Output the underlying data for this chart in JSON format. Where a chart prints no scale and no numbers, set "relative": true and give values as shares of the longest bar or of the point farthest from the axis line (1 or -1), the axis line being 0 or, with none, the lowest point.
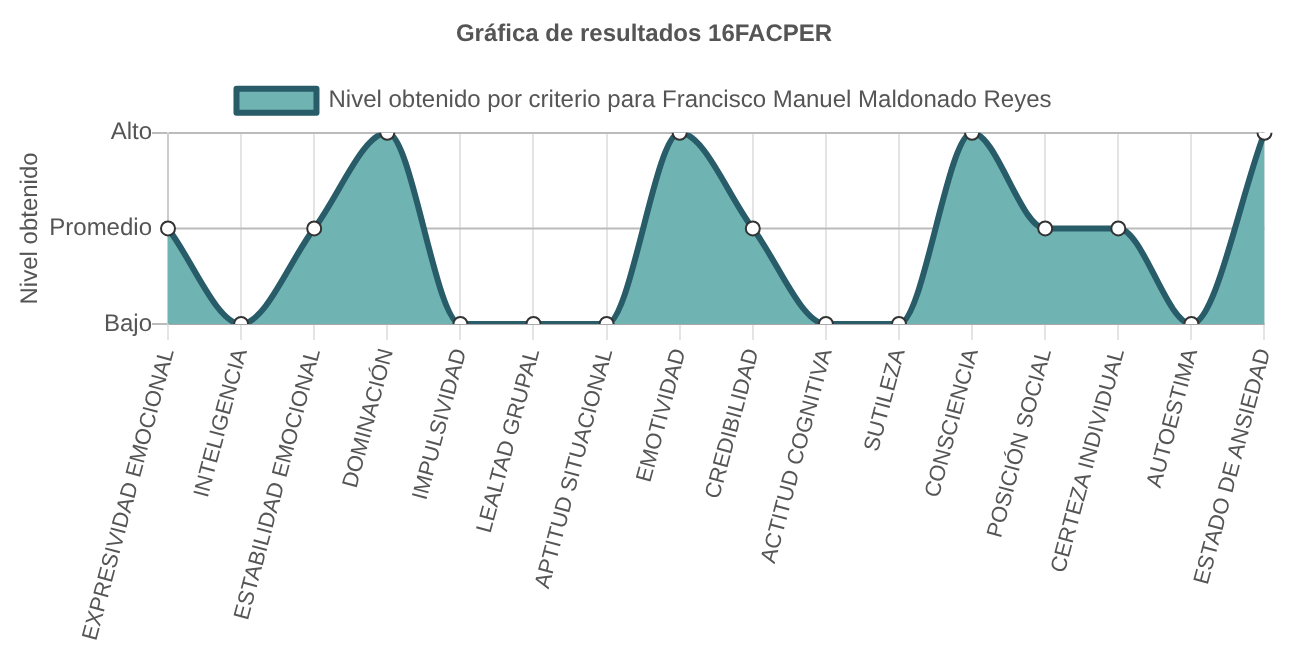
{
  "chart_data": {
    "type": "area",
    "title": "Gráfica de resultados 16FACPER",
    "ylabel": "Nivel obtenido",
    "categories": [
      "EXPRESIVIDAD EMOCIONAL",
      "INTELIGENCIA",
      "ESTABILIDAD EMOCIONAL",
      "DOMINACIÓN",
      "IMPULSIVIDAD",
      "LEALTAD GRUPAL",
      "APTITUD SITUACIONAL",
      "EMOTIVIDAD",
      "CREDIBILIDAD",
      "ACTITUD COGNITIVA",
      "SUTILEZA",
      "CONSCIENCIA",
      "POSICIÓN SOCIAL",
      "CERTEZA INDIVIDUAL",
      "AUTOESTIMA",
      "ESTADO DE ANSIEDAD"
    ],
    "relative": true,
    "annotations": [
      "Bajo",
      "Promedio",
      "Alto"
    ],
    "ref_lines": [
      {
        "axis": "y",
        "value": 0.5,
        "color": "#bbbbbb"
      }
    ],
    "series": [
      {
        "name": "Nivel obtenido por criterio para Francisco Manuel Maldonado Reyes",
        "color": "#6fb3b3",
        "values": [
          0.5,
          0,
          0.5,
          1,
          0,
          0,
          0,
          1,
          0.5,
          0,
          0,
          1,
          0.5,
          0.5,
          0,
          1
        ]
      }
    ],
    "grid": true,
    "legend": "top",
    "marker": "circle",
    "line_style": "solid"
  }
}
